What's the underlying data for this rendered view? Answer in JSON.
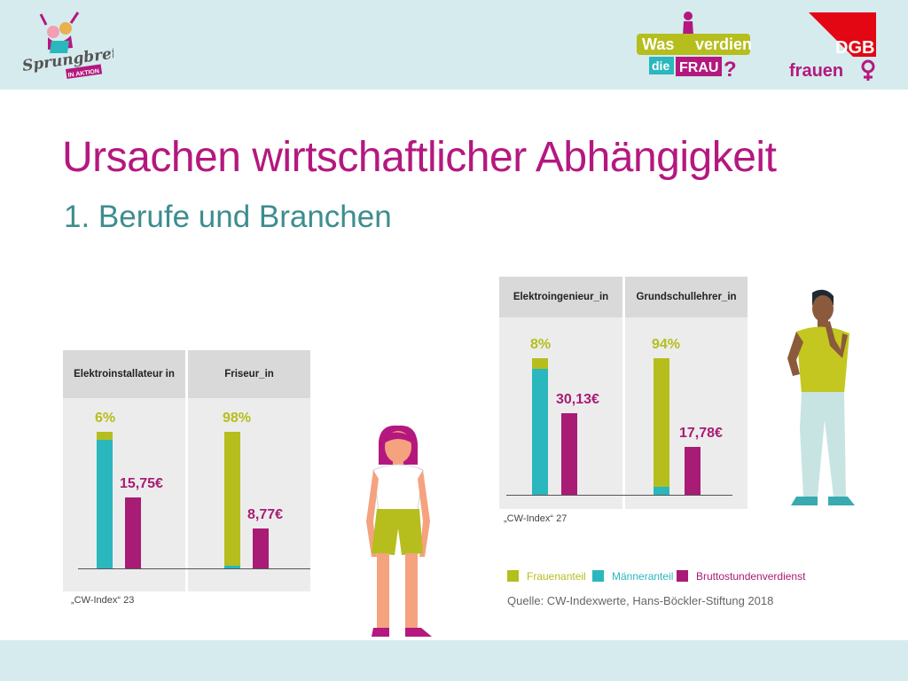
{
  "header": {
    "logo_left_text": "Sprungbrett",
    "logo_left_badge": "IN AKTION",
    "logo_center_line1_a": "Was",
    "logo_center_line1_b": "verdient",
    "logo_center_line2_a": "die",
    "logo_center_line2_b": "FRAU",
    "logo_center_q": "?",
    "logo_right_brand": "DGB",
    "logo_right_sub": "frauen",
    "colors": {
      "band": "#d6ebee",
      "magenta": "#b4187f",
      "lime": "#b5be1d",
      "teal": "#2ab7bd",
      "dgb_red": "#e30613"
    }
  },
  "slide": {
    "title": "Ursachen wirtschaftlicher Abhängigkeit",
    "subtitle": "1. Berufe und Branchen"
  },
  "chart_data": [
    {
      "type": "bar",
      "note": "„CW-Index“ 23",
      "groups": [
        {
          "label": "Elektroinstallateur  in",
          "frauenanteil_pct": 6,
          "maenneranteil_pct": 94,
          "frauenanteil_label": "6%",
          "bruttostundenverdienst_eur": 15.75,
          "verdienst_label": "15,75€"
        },
        {
          "label": "Friseur_in",
          "frauenanteil_pct": 98,
          "maenneranteil_pct": 2,
          "frauenanteil_label": "98%",
          "bruttostundenverdienst_eur": 8.77,
          "verdienst_label": "8,77€"
        }
      ]
    },
    {
      "type": "bar",
      "note": "„CW-Index“ 27",
      "groups": [
        {
          "label": "Elektroingenieur_in",
          "frauenanteil_pct": 8,
          "maenneranteil_pct": 92,
          "frauenanteil_label": "8%",
          "bruttostundenverdienst_eur": 30.13,
          "verdienst_label": "30,13€"
        },
        {
          "label": "Grundschullehrer_in",
          "frauenanteil_pct": 94,
          "maenneranteil_pct": 6,
          "frauenanteil_label": "94%",
          "bruttostundenverdienst_eur": 17.78,
          "verdienst_label": "17,78€"
        }
      ]
    }
  ],
  "legend": [
    {
      "label": "Frauenanteil",
      "color": "#b5be1d"
    },
    {
      "label": "Männeranteil",
      "color": "#2ab7bd"
    },
    {
      "label": "Bruttostundenverdienst",
      "color": "#a81c75"
    }
  ],
  "source": "Quelle: CW-Indexwerte, Hans-Böckler-Stiftung 2018"
}
